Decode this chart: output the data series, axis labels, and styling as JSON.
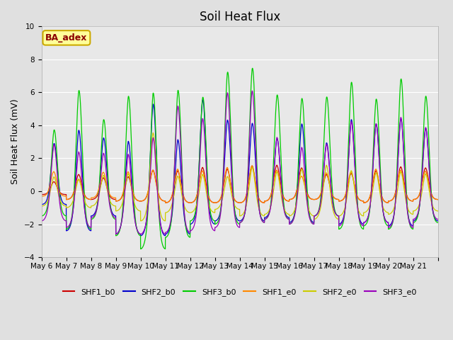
{
  "title": "Soil Heat Flux",
  "ylabel": "Soil Heat Flux (mV)",
  "ylim": [
    -4,
    10
  ],
  "yticks": [
    -4,
    -2,
    0,
    2,
    4,
    6,
    8,
    10
  ],
  "xtick_labels": [
    "May 6",
    "May 7",
    "May 8",
    "May 9",
    "May 10",
    "May 11",
    "May 12",
    "May 13",
    "May 14",
    "May 15",
    "May 16",
    "May 17",
    "May 18",
    "May 19",
    "May 20",
    "May 21"
  ],
  "series": [
    "SHF1_b0",
    "SHF2_b0",
    "SHF3_b0",
    "SHF1_e0",
    "SHF2_e0",
    "SHF3_e0"
  ],
  "colors": [
    "#cc0000",
    "#0000cc",
    "#00cc00",
    "#ff8800",
    "#cccc00",
    "#9900bb"
  ],
  "background_color": "#e0e0e0",
  "plot_bg_color": "#e8e8e8",
  "grid_color": "#ffffff",
  "annotation_text": "BA_adex",
  "annotation_bg": "#ffff99",
  "annotation_border": "#ccaa00",
  "annotation_text_color": "#8b0000",
  "title_fontsize": 12,
  "label_fontsize": 9,
  "tick_fontsize": 7.5,
  "legend_fontsize": 8,
  "num_days": 16,
  "points_per_day": 288,
  "day_peaks_shf1_b0": [
    0.65,
    1.2,
    1.0,
    1.1,
    1.5,
    1.5,
    1.7,
    1.6,
    1.8,
    1.8,
    1.6,
    1.2,
    1.3,
    1.5,
    1.7,
    1.6
  ],
  "day_peaks_shf2_b0": [
    3.2,
    4.6,
    3.8,
    4.0,
    6.3,
    4.1,
    6.3,
    5.0,
    4.8,
    3.8,
    4.8,
    3.5,
    5.1,
    4.8,
    5.2,
    4.5
  ],
  "day_peaks_shf3_b0": [
    4.3,
    7.0,
    5.0,
    6.8,
    7.3,
    7.2,
    6.4,
    8.0,
    8.2,
    6.5,
    6.4,
    6.3,
    7.5,
    6.4,
    7.7,
    6.5
  ],
  "day_peaks_shf1_e0": [
    1.3,
    0.9,
    1.3,
    1.4,
    1.5,
    1.6,
    1.5,
    1.7,
    1.8,
    1.5,
    1.1,
    1.3,
    1.4,
    1.6,
    1.5,
    1.4
  ],
  "day_peaks_shf2_e0": [
    1.2,
    1.1,
    1.3,
    1.5,
    4.2,
    1.4,
    1.5,
    1.3,
    2.0,
    1.7,
    1.9,
    2.2,
    1.8,
    1.6,
    1.7,
    1.5
  ],
  "day_peaks_shf3_e0": [
    3.5,
    3.2,
    2.9,
    3.2,
    4.2,
    6.1,
    5.3,
    6.8,
    6.8,
    3.9,
    3.4,
    3.4,
    5.0,
    4.8,
    5.3,
    4.5
  ],
  "day_troughs_shf1_b0": [
    -0.2,
    -0.5,
    -0.5,
    -0.6,
    -0.6,
    -0.7,
    -0.7,
    -0.7,
    -0.7,
    -0.6,
    -0.5,
    -0.5,
    -0.6,
    -0.7,
    -0.6,
    -0.5
  ],
  "day_troughs_shf2_b0": [
    -0.8,
    -2.4,
    -1.5,
    -2.6,
    -2.7,
    -2.6,
    -2.0,
    -1.8,
    -1.8,
    -1.6,
    -1.9,
    -1.5,
    -2.0,
    -1.9,
    -2.1,
    -1.8
  ],
  "day_troughs_shf3_b0": [
    -1.5,
    -2.3,
    -1.7,
    -2.7,
    -3.5,
    -2.8,
    -1.8,
    -2.0,
    -1.9,
    -1.7,
    -2.0,
    -1.5,
    -2.3,
    -2.1,
    -2.3,
    -1.9
  ],
  "day_troughs_shf1_e0": [
    -0.3,
    -0.5,
    -0.4,
    -0.6,
    -0.6,
    -0.7,
    -0.7,
    -0.7,
    -0.7,
    -0.6,
    -0.5,
    -0.5,
    -0.6,
    -0.7,
    -0.6,
    -0.5
  ],
  "day_troughs_shf2_e0": [
    -0.9,
    -1.0,
    -0.9,
    -1.2,
    -1.8,
    -1.3,
    -1.3,
    -1.1,
    -1.5,
    -1.4,
    -1.5,
    -1.7,
    -1.5,
    -1.3,
    -1.4,
    -1.2
  ],
  "day_troughs_shf3_e0": [
    -1.8,
    -2.2,
    -1.6,
    -2.6,
    -2.6,
    -2.5,
    -2.4,
    -2.2,
    -1.9,
    -1.7,
    -2.0,
    -1.5,
    -2.1,
    -1.9,
    -2.2,
    -1.7
  ],
  "phase_shifts": [
    0.0,
    0.015,
    0.02,
    -0.008,
    0.008,
    0.012
  ]
}
